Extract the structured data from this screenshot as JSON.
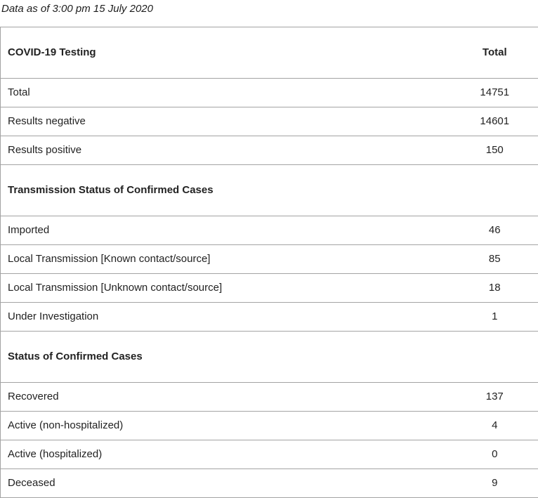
{
  "caption": "Data as of 3:00 pm 15 July 2020",
  "colors": {
    "border": "#a3a3a3",
    "text": "#222222",
    "background": "#ffffff"
  },
  "table": {
    "header": {
      "label": "COVID-19 Testing",
      "value_label": "Total"
    },
    "sections": [
      {
        "title": "",
        "rows": [
          {
            "label": "Total",
            "value": "14751"
          },
          {
            "label": "Results negative",
            "value": "14601"
          },
          {
            "label": "Results positive",
            "value": "150"
          }
        ]
      },
      {
        "title": "Transmission Status of Confirmed Cases",
        "rows": [
          {
            "label": "Imported",
            "value": "46"
          },
          {
            "label": "Local Transmission [Known contact/source]",
            "value": "85"
          },
          {
            "label": "Local Transmission [Unknown contact/source]",
            "value": "18"
          },
          {
            "label": "Under Investigation",
            "value": "1"
          }
        ]
      },
      {
        "title": "Status of Confirmed Cases",
        "rows": [
          {
            "label": "Recovered",
            "value": "137"
          },
          {
            "label": "Active (non-hospitalized)",
            "value": "4"
          },
          {
            "label": "Active (hospitalized)",
            "value": "0"
          },
          {
            "label": "Deceased",
            "value": "9"
          }
        ]
      }
    ]
  }
}
